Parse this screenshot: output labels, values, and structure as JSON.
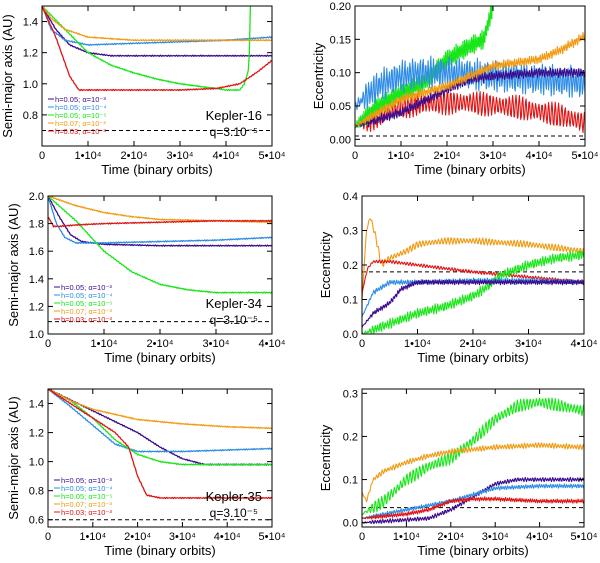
{
  "figure": {
    "title": ""
  },
  "series_colors": {
    "h005_a1e3": "#3a0a8c",
    "h005_a1e4": "#2e8ce6",
    "h005_a1e5": "#19e619",
    "h007_a1e3": "#f29a12",
    "h003_a1e3": "#e01414"
  },
  "legend_labels": [
    "h=0.05; α=10⁻³",
    "h=0.05; α=10⁻⁴",
    "h=0.05; α=10⁻⁵",
    "h=0.07; α=10⁻³",
    "h=0.03; α=10⁻³"
  ],
  "chart_data": [
    {
      "id": "k16-a",
      "type": "line",
      "system": "Kepler-16",
      "q_label": "q=3.10⁻⁵",
      "xlabel": "Time (binary orbits)",
      "ylabel": "Semi-major axis (AU)",
      "xlim": [
        0,
        50000
      ],
      "ylim": [
        0.6,
        1.5
      ],
      "xticks": [
        0,
        10000,
        20000,
        30000,
        40000,
        50000
      ],
      "xtick_labels": [
        "0",
        "1•10⁴",
        "2•10⁴",
        "3•10⁴",
        "4•10⁴",
        "5•10⁴"
      ],
      "yticks": [
        0.8,
        1.0,
        1.2,
        1.4
      ],
      "ytick_labels": [
        "0.8",
        "1.0",
        "1.2",
        "1.4"
      ],
      "reference_line": 0.7,
      "legend": true,
      "series": [
        {
          "key": "h005_a1e3",
          "x": [
            0,
            3000,
            6000,
            10000,
            15000,
            20000,
            30000,
            40000,
            50000
          ],
          "y": [
            1.5,
            1.35,
            1.25,
            1.2,
            1.18,
            1.18,
            1.18,
            1.18,
            1.18
          ]
        },
        {
          "key": "h005_a1e4",
          "x": [
            0,
            2000,
            5000,
            10000,
            20000,
            30000,
            40000,
            50000
          ],
          "y": [
            1.5,
            1.35,
            1.28,
            1.25,
            1.26,
            1.27,
            1.28,
            1.3
          ]
        },
        {
          "key": "h005_a1e5",
          "x": [
            0,
            5000,
            10000,
            15000,
            20000,
            25000,
            30000,
            35000,
            38000,
            40000,
            43000,
            44000,
            45000,
            45300
          ],
          "y": [
            1.5,
            1.35,
            1.2,
            1.12,
            1.07,
            1.03,
            1.0,
            0.98,
            0.97,
            0.96,
            0.96,
            1.0,
            1.1,
            1.5
          ]
        },
        {
          "key": "h007_a1e3",
          "x": [
            0,
            2000,
            5000,
            10000,
            20000,
            30000,
            40000,
            50000
          ],
          "y": [
            1.5,
            1.42,
            1.35,
            1.3,
            1.28,
            1.28,
            1.28,
            1.28
          ]
        },
        {
          "key": "h003_a1e3",
          "x": [
            0,
            3000,
            6000,
            8000,
            10000,
            20000,
            30000,
            38000,
            43000,
            47000,
            50000
          ],
          "y": [
            1.5,
            1.3,
            1.05,
            0.96,
            0.96,
            0.96,
            0.96,
            0.97,
            1.0,
            1.08,
            1.15
          ]
        }
      ]
    },
    {
      "id": "k16-e",
      "type": "line",
      "system": "Kepler-16",
      "xlabel": "Time (binary orbits)",
      "ylabel": "Eccentricity",
      "xlim": [
        0,
        50000
      ],
      "ylim": [
        -0.01,
        0.2
      ],
      "xticks": [
        0,
        10000,
        20000,
        30000,
        40000,
        50000
      ],
      "xtick_labels": [
        "0",
        "1•10⁴",
        "2•10⁴",
        "3•10⁴",
        "4•10⁴",
        "5•10⁴"
      ],
      "yticks": [
        0.0,
        0.05,
        0.1,
        0.15,
        0.2
      ],
      "ytick_labels": [
        "0.00",
        "0.05",
        "0.10",
        "0.15",
        "0.20"
      ],
      "reference_line": 0.005,
      "series": [
        {
          "key": "h003_a1e3",
          "x": [
            0,
            5000,
            10000,
            18000,
            25000,
            35000,
            45000,
            50000
          ],
          "y": [
            0.02,
            0.035,
            0.05,
            0.055,
            0.055,
            0.048,
            0.035,
            0.025
          ],
          "osc": 0.015
        },
        {
          "key": "h005_a1e5",
          "x": [
            0,
            5000,
            10000,
            15000,
            20000,
            25000,
            28000,
            30000
          ],
          "y": [
            0.02,
            0.05,
            0.07,
            0.085,
            0.12,
            0.14,
            0.15,
            0.2
          ],
          "osc": 0.012
        },
        {
          "key": "h005_a1e4",
          "x": [
            0,
            5000,
            10000,
            15000,
            20000,
            30000,
            40000,
            50000
          ],
          "y": [
            0.05,
            0.08,
            0.095,
            0.1,
            0.1,
            0.095,
            0.09,
            0.085
          ],
          "osc": 0.02
        },
        {
          "key": "h005_a1e3",
          "x": [
            0,
            10000,
            20000,
            25000,
            30000,
            40000,
            50000
          ],
          "y": [
            0.02,
            0.04,
            0.075,
            0.09,
            0.095,
            0.1,
            0.1
          ],
          "osc": 0.006
        },
        {
          "key": "h007_a1e3",
          "x": [
            0,
            10000,
            20000,
            25000,
            30000,
            40000,
            45000,
            50000
          ],
          "y": [
            0.02,
            0.06,
            0.08,
            0.095,
            0.11,
            0.12,
            0.135,
            0.155
          ],
          "osc": 0.006
        }
      ]
    },
    {
      "id": "k34-a",
      "type": "line",
      "system": "Kepler-34",
      "q_label": "q=3.10⁻⁵",
      "xlabel": "Time (binary orbits)",
      "ylabel": "Semi-major axis (AU)",
      "xlim": [
        0,
        40000
      ],
      "ylim": [
        1.0,
        2.0
      ],
      "xticks": [
        0,
        10000,
        20000,
        30000,
        40000
      ],
      "xtick_labels": [
        "0",
        "1•10⁴",
        "2•10⁴",
        "3•10⁴",
        "4•10⁴"
      ],
      "yticks": [
        1.0,
        1.2,
        1.4,
        1.6,
        1.8,
        2.0
      ],
      "ytick_labels": [
        "1.0",
        "1.2",
        "1.4",
        "1.6",
        "1.8",
        "2.0"
      ],
      "reference_line": 1.09,
      "legend": true,
      "series": [
        {
          "key": "h005_a1e3",
          "x": [
            0,
            2000,
            4000,
            6000,
            10000,
            20000,
            30000,
            40000
          ],
          "y": [
            2.0,
            1.85,
            1.72,
            1.67,
            1.65,
            1.64,
            1.64,
            1.64
          ]
        },
        {
          "key": "h005_a1e4",
          "x": [
            0,
            1500,
            3000,
            5000,
            10000,
            20000,
            30000,
            40000
          ],
          "y": [
            2.0,
            1.8,
            1.7,
            1.66,
            1.66,
            1.67,
            1.68,
            1.7
          ]
        },
        {
          "key": "h005_a1e5",
          "x": [
            0,
            5000,
            10000,
            15000,
            20000,
            25000,
            30000,
            40000
          ],
          "y": [
            2.0,
            1.82,
            1.6,
            1.45,
            1.36,
            1.32,
            1.3,
            1.3
          ]
        },
        {
          "key": "h007_a1e3",
          "x": [
            0,
            5000,
            10000,
            15000,
            20000,
            30000,
            40000
          ],
          "y": [
            2.0,
            1.93,
            1.88,
            1.85,
            1.83,
            1.82,
            1.81
          ]
        },
        {
          "key": "h003_a1e3",
          "x": [
            0,
            1000,
            2000,
            5000,
            10000,
            20000,
            30000,
            40000
          ],
          "y": [
            1.85,
            1.78,
            1.78,
            1.79,
            1.8,
            1.81,
            1.82,
            1.82
          ]
        }
      ]
    },
    {
      "id": "k34-e",
      "type": "line",
      "system": "Kepler-34",
      "xlabel": "Time (binary orbits)",
      "ylabel": "Eccentricity",
      "xlim": [
        0,
        40000
      ],
      "ylim": [
        0.0,
        0.4
      ],
      "xticks": [
        0,
        10000,
        20000,
        30000,
        40000
      ],
      "xtick_labels": [
        "0",
        "1•10⁴",
        "2•10⁴",
        "3•10⁴",
        "4•10⁴"
      ],
      "yticks": [
        0.0,
        0.1,
        0.2,
        0.3,
        0.4
      ],
      "ytick_labels": [
        "0.0",
        "0.1",
        "0.2",
        "0.3",
        "0.4"
      ],
      "reference_line": 0.18,
      "series": [
        {
          "key": "h007_a1e3",
          "x": [
            0,
            800,
            1500,
            2500,
            3500,
            5000,
            8000,
            10000,
            15000,
            20000,
            30000,
            40000
          ],
          "y": [
            0.1,
            0.3,
            0.34,
            0.28,
            0.2,
            0.22,
            0.24,
            0.26,
            0.27,
            0.27,
            0.26,
            0.24
          ],
          "osc": 0.008
        },
        {
          "key": "h003_a1e3",
          "x": [
            0,
            1000,
            2000,
            5000,
            10000,
            20000,
            30000,
            40000
          ],
          "y": [
            0.12,
            0.19,
            0.21,
            0.21,
            0.2,
            0.18,
            0.165,
            0.15
          ],
          "osc": 0.004
        },
        {
          "key": "h005_a1e5",
          "x": [
            0,
            5000,
            10000,
            15000,
            20000,
            22000,
            25000,
            30000,
            35000,
            40000
          ],
          "y": [
            0.0,
            0.03,
            0.06,
            0.08,
            0.11,
            0.13,
            0.17,
            0.2,
            0.22,
            0.23
          ],
          "osc": 0.012
        },
        {
          "key": "h005_a1e4",
          "x": [
            0,
            2000,
            5000,
            10000,
            20000,
            30000,
            40000
          ],
          "y": [
            0.05,
            0.12,
            0.15,
            0.15,
            0.155,
            0.155,
            0.15
          ],
          "osc": 0.006
        },
        {
          "key": "h005_a1e3",
          "x": [
            0,
            2000,
            5000,
            7000,
            10000,
            20000,
            30000,
            40000
          ],
          "y": [
            0.02,
            0.06,
            0.09,
            0.13,
            0.15,
            0.15,
            0.15,
            0.15
          ],
          "osc": 0.006
        }
      ]
    },
    {
      "id": "k35-a",
      "type": "line",
      "system": "Kepler-35",
      "q_label": "q=3.10⁻⁵",
      "xlabel": "Time (binary orbits)",
      "ylabel": "Semi-major axis (AU)",
      "xlim": [
        0,
        50000
      ],
      "ylim": [
        0.55,
        1.5
      ],
      "xticks": [
        0,
        10000,
        20000,
        30000,
        40000,
        50000
      ],
      "xtick_labels": [
        "0",
        "1•10⁴",
        "2•10⁴",
        "3•10⁴",
        "4•10⁴",
        "5•10⁴"
      ],
      "yticks": [
        0.6,
        0.8,
        1.0,
        1.2,
        1.4
      ],
      "ytick_labels": [
        "0.6",
        "0.8",
        "1.0",
        "1.2",
        "1.4"
      ],
      "reference_line": 0.6,
      "legend": true,
      "series": [
        {
          "key": "h005_a1e3",
          "x": [
            0,
            10000,
            20000,
            25000,
            30000,
            35000,
            40000,
            50000
          ],
          "y": [
            1.5,
            1.35,
            1.2,
            1.1,
            1.02,
            0.98,
            0.98,
            0.98
          ]
        },
        {
          "key": "h005_a1e4",
          "x": [
            0,
            5000,
            10000,
            15000,
            20000,
            30000,
            40000,
            50000
          ],
          "y": [
            1.5,
            1.38,
            1.25,
            1.12,
            1.07,
            1.07,
            1.08,
            1.09
          ]
        },
        {
          "key": "h005_a1e5",
          "x": [
            0,
            5000,
            10000,
            15000,
            20000,
            25000,
            30000,
            40000,
            50000
          ],
          "y": [
            1.5,
            1.42,
            1.3,
            1.15,
            1.05,
            1.0,
            0.98,
            0.98,
            0.98
          ]
        },
        {
          "key": "h007_a1e3",
          "x": [
            0,
            5000,
            10000,
            20000,
            30000,
            40000,
            50000
          ],
          "y": [
            1.5,
            1.42,
            1.36,
            1.29,
            1.26,
            1.24,
            1.23
          ]
        },
        {
          "key": "h003_a1e3",
          "x": [
            0,
            5000,
            10000,
            15000,
            18000,
            20000,
            22000,
            25000,
            30000,
            40000,
            50000
          ],
          "y": [
            1.5,
            1.4,
            1.3,
            1.2,
            1.1,
            0.9,
            0.77,
            0.75,
            0.75,
            0.75,
            0.75
          ]
        }
      ]
    },
    {
      "id": "k35-e",
      "type": "line",
      "system": "Kepler-35",
      "xlabel": "Time (binary orbits)",
      "ylabel": "Eccentricity",
      "xlim": [
        0,
        50000
      ],
      "ylim": [
        -0.01,
        0.31
      ],
      "xticks": [
        0,
        10000,
        20000,
        30000,
        40000,
        50000
      ],
      "xtick_labels": [
        "0",
        "1•10⁴",
        "2•10⁴",
        "3•10⁴",
        "4•10⁴",
        "5•10⁴"
      ],
      "yticks": [
        0.0,
        0.1,
        0.2,
        0.3
      ],
      "ytick_labels": [
        "0.0",
        "0.1",
        "0.2",
        "0.3"
      ],
      "reference_line": 0.035,
      "series": [
        {
          "key": "h005_a1e5",
          "x": [
            0,
            5000,
            10000,
            15000,
            20000,
            25000,
            30000,
            35000,
            40000,
            45000,
            50000
          ],
          "y": [
            0.02,
            0.05,
            0.1,
            0.13,
            0.15,
            0.19,
            0.24,
            0.27,
            0.28,
            0.27,
            0.26
          ],
          "osc": 0.012
        },
        {
          "key": "h007_a1e3",
          "x": [
            0,
            1000,
            2500,
            5000,
            10000,
            15000,
            20000,
            30000,
            40000,
            50000
          ],
          "y": [
            0.07,
            0.05,
            0.1,
            0.12,
            0.14,
            0.155,
            0.165,
            0.175,
            0.18,
            0.175
          ],
          "osc": 0.005
        },
        {
          "key": "h005_a1e3",
          "x": [
            0,
            15000,
            20000,
            25000,
            30000,
            35000,
            40000,
            50000
          ],
          "y": [
            0.0,
            0.01,
            0.03,
            0.06,
            0.09,
            0.1,
            0.1,
            0.1
          ],
          "osc": 0.004
        },
        {
          "key": "h005_a1e4",
          "x": [
            0,
            5000,
            10000,
            20000,
            30000,
            40000,
            50000
          ],
          "y": [
            0.01,
            0.02,
            0.03,
            0.05,
            0.08,
            0.085,
            0.085
          ],
          "osc": 0.004
        },
        {
          "key": "h003_a1e3",
          "x": [
            0,
            10000,
            15000,
            20000,
            25000,
            30000,
            40000,
            50000
          ],
          "y": [
            0.01,
            0.02,
            0.03,
            0.05,
            0.055,
            0.055,
            0.05,
            0.05
          ],
          "osc": 0.004
        }
      ]
    }
  ]
}
